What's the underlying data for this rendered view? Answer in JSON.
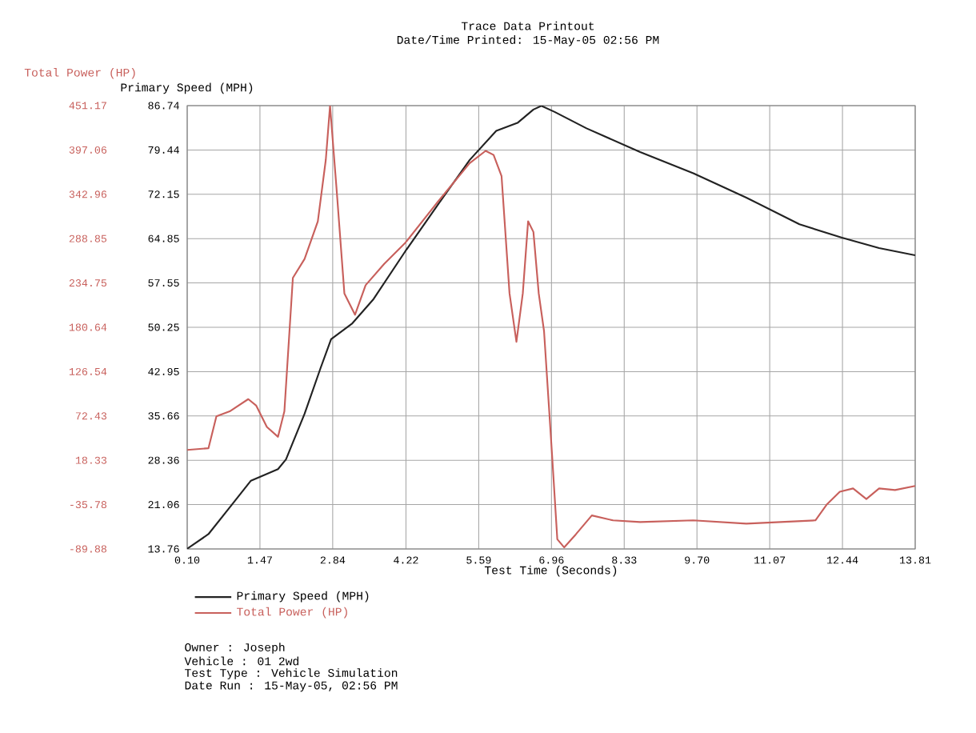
{
  "chart_data": {
    "type": "line",
    "title": "Trace Data Printout",
    "subtitle": "Date/Time Printed: 15-May-05 02:56 PM",
    "xlabel": "Test Time (Seconds)",
    "ylabel": "Primary Speed (MPH)",
    "y2label": "Total Power (HP)",
    "xlim": [
      0.1,
      13.81
    ],
    "xticks": [
      {
        "value": 0.1,
        "label": "0.10"
      },
      1.47,
      2.84,
      4.22,
      5.59,
      6.96,
      8.33,
      {
        "value": 9.7,
        "label": "9.70"
      },
      11.07,
      12.44,
      13.81
    ],
    "ylim": [
      13.76,
      86.74
    ],
    "yticks": [
      13.76,
      21.06,
      28.36,
      35.66,
      42.95,
      50.25,
      57.55,
      64.85,
      72.15,
      79.44,
      86.74
    ],
    "y2lim": [
      -89.88,
      451.17
    ],
    "y2ticks": [
      -89.88,
      -35.78,
      18.33,
      72.43,
      126.54,
      180.64,
      234.75,
      288.85,
      342.96,
      397.06,
      451.17
    ],
    "grid": true,
    "legend": "bottom",
    "series": [
      {
        "name": "Primary Speed (MPH)",
        "color": "#222222",
        "x": [
          0.1,
          0.5,
          0.9,
          1.3,
          1.6,
          1.81,
          1.96,
          2.31,
          2.61,
          2.81,
          3.21,
          3.61,
          4.21,
          4.81,
          5.42,
          5.92,
          6.32,
          6.62,
          6.77,
          7.02,
          7.62,
          8.63,
          9.63,
          10.63,
          11.63,
          12.43,
          13.13,
          13.81
        ],
        "values": [
          13.8,
          16.2,
          20.6,
          25.0,
          26.1,
          26.9,
          28.5,
          36.0,
          43.5,
          48.3,
          50.9,
          54.9,
          62.8,
          70.3,
          77.8,
          82.6,
          83.9,
          86.1,
          86.7,
          85.7,
          83.0,
          79.1,
          75.6,
          71.6,
          67.2,
          65.0,
          63.3,
          62.1
        ]
      },
      {
        "name": "Total Power (HP)",
        "color": "#c8605c",
        "axis": "y2",
        "x": [
          0.1,
          0.5,
          0.65,
          0.9,
          1.25,
          1.4,
          1.6,
          1.81,
          1.93,
          2.09,
          2.31,
          2.56,
          2.71,
          2.79,
          2.91,
          3.06,
          3.26,
          3.46,
          3.81,
          4.21,
          4.81,
          5.42,
          5.72,
          5.87,
          6.02,
          6.17,
          6.3,
          6.42,
          6.52,
          6.62,
          6.72,
          6.82,
          6.97,
          7.07,
          7.2,
          7.42,
          7.72,
          8.12,
          8.63,
          9.63,
          10.63,
          11.93,
          12.14,
          12.39,
          12.64,
          12.89,
          13.13,
          13.43,
          13.81
        ],
        "values": [
          31,
          33,
          72,
          78,
          93,
          85,
          59,
          47,
          78,
          241,
          264,
          310,
          385,
          451,
          352,
          222,
          196,
          232,
          258,
          284,
          333,
          381,
          396,
          391,
          365,
          222,
          163,
          222,
          310,
          297,
          222,
          176,
          26,
          -78,
          -88,
          -72,
          -49,
          -55,
          -57,
          -55,
          -59,
          -55,
          -36,
          -20,
          -16,
          -29,
          -16,
          -18,
          -13
        ]
      }
    ],
    "annotations": [
      "Owner : Joseph",
      "Vehicle : 01 2wd",
      "Test Type : Vehicle Simulation",
      "Date Run : 15-May-05, 02:56 PM"
    ]
  }
}
